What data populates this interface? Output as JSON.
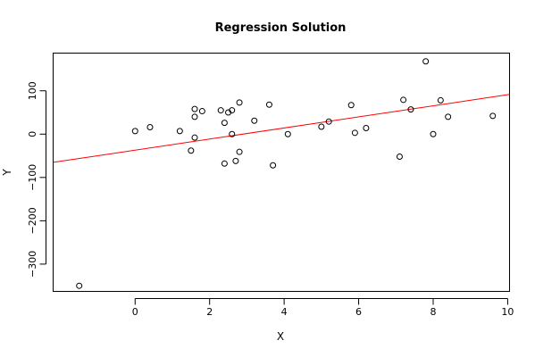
{
  "chart_data": {
    "type": "scatter",
    "title": "Regression Solution",
    "xlabel": "X",
    "ylabel": "Y",
    "xlim": [
      -2.2,
      10.05
    ],
    "ylim": [
      -363,
      187
    ],
    "xticks": [
      0,
      2,
      4,
      6,
      8,
      10
    ],
    "yticks": [
      -300,
      -200,
      -100,
      0,
      100
    ],
    "grid": false,
    "legend": "none",
    "point_color": "#000000",
    "line_color": "#ff0000",
    "fit_line": {
      "intercept": -37,
      "slope": 12.8
    },
    "points": [
      {
        "x": -1.5,
        "y": -350
      },
      {
        "x": 0.0,
        "y": 7
      },
      {
        "x": 0.4,
        "y": 16
      },
      {
        "x": 1.2,
        "y": 7
      },
      {
        "x": 1.5,
        "y": -38
      },
      {
        "x": 1.6,
        "y": 58
      },
      {
        "x": 1.6,
        "y": 40
      },
      {
        "x": 1.6,
        "y": -8
      },
      {
        "x": 1.8,
        "y": 53
      },
      {
        "x": 2.3,
        "y": 55
      },
      {
        "x": 2.4,
        "y": 26
      },
      {
        "x": 2.4,
        "y": -68
      },
      {
        "x": 2.5,
        "y": 50
      },
      {
        "x": 2.6,
        "y": 55
      },
      {
        "x": 2.6,
        "y": 0
      },
      {
        "x": 2.7,
        "y": -62
      },
      {
        "x": 2.8,
        "y": 73
      },
      {
        "x": 2.8,
        "y": -41
      },
      {
        "x": 3.2,
        "y": 31
      },
      {
        "x": 3.6,
        "y": 68
      },
      {
        "x": 3.7,
        "y": -72
      },
      {
        "x": 4.1,
        "y": 0
      },
      {
        "x": 5.0,
        "y": 17
      },
      {
        "x": 5.2,
        "y": 29
      },
      {
        "x": 5.8,
        "y": 67
      },
      {
        "x": 5.9,
        "y": 3
      },
      {
        "x": 6.2,
        "y": 14
      },
      {
        "x": 7.1,
        "y": -52
      },
      {
        "x": 7.2,
        "y": 79
      },
      {
        "x": 7.4,
        "y": 57
      },
      {
        "x": 7.8,
        "y": 168
      },
      {
        "x": 8.0,
        "y": 0
      },
      {
        "x": 8.2,
        "y": 78
      },
      {
        "x": 8.4,
        "y": 40
      },
      {
        "x": 9.6,
        "y": 42
      }
    ]
  }
}
